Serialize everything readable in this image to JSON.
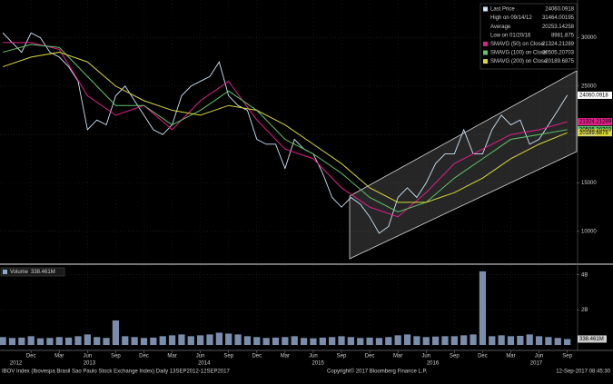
{
  "chart_data": {
    "type": "line",
    "x": [
      0,
      1,
      2,
      3,
      4,
      5,
      6,
      7,
      8,
      9,
      10,
      11,
      12,
      13,
      14,
      15,
      16,
      17,
      18,
      19,
      20,
      21,
      22,
      23,
      24,
      25,
      26,
      27,
      28,
      29,
      30,
      31,
      32,
      33,
      34,
      35,
      36,
      37,
      38,
      39,
      40,
      41,
      42,
      43,
      44,
      45,
      46,
      47,
      48,
      49,
      50,
      51,
      52,
      53,
      54,
      55,
      56,
      57,
      58,
      59,
      60
    ],
    "xlim": [
      -0.3,
      61
    ],
    "xticks": [
      {
        "value": 3,
        "label": "Dec"
      },
      {
        "value": 6,
        "label": "Mar"
      },
      {
        "value": 9,
        "label": "Jun"
      },
      {
        "value": 12,
        "label": "Sep"
      },
      {
        "value": 15,
        "label": "Dec"
      },
      {
        "value": 18,
        "label": "Mar"
      },
      {
        "value": 21,
        "label": "Jun"
      },
      {
        "value": 24,
        "label": "Sep"
      },
      {
        "value": 27,
        "label": "Dec"
      },
      {
        "value": 30,
        "label": "Mar"
      },
      {
        "value": 33,
        "label": "Jun"
      },
      {
        "value": 36,
        "label": "Sep"
      },
      {
        "value": 39,
        "label": "Dec"
      },
      {
        "value": 42,
        "label": "Mar"
      },
      {
        "value": 45,
        "label": "Jun"
      },
      {
        "value": 48,
        "label": "Sep"
      },
      {
        "value": 51,
        "label": "Dec"
      },
      {
        "value": 54,
        "label": "Mar"
      },
      {
        "value": 57,
        "label": "Jun"
      },
      {
        "value": 60,
        "label": "Sep"
      }
    ],
    "year_labels": [
      {
        "value": 1.4,
        "label": "2012"
      },
      {
        "value": 9.2,
        "label": "2013"
      },
      {
        "value": 21.4,
        "label": "2014"
      },
      {
        "value": 33.5,
        "label": "2015"
      },
      {
        "value": 45.7,
        "label": "2016"
      },
      {
        "value": 56.7,
        "label": "2017"
      }
    ],
    "ylim": [
      6700,
      33900
    ],
    "yticks": [
      10000,
      15000,
      20000,
      25000,
      30000
    ],
    "grid": true,
    "series": [
      {
        "name": "Last Price",
        "color": "#cfe3f5",
        "values": [
          30500,
          29500,
          28500,
          30500,
          30000,
          28500,
          28000,
          27000,
          25500,
          20500,
          21500,
          21000,
          24000,
          25000,
          23500,
          22000,
          20500,
          20000,
          21000,
          24000,
          25000,
          25500,
          26000,
          27500,
          24000,
          23000,
          22500,
          19500,
          19000,
          19000,
          16500,
          19500,
          18500,
          18000,
          16000,
          13500,
          12500,
          13500,
          12800,
          11500,
          9800,
          10500,
          13500,
          14500,
          13500,
          15000,
          17000,
          18000,
          18000,
          20500,
          18000,
          18000,
          20500,
          22000,
          21000,
          21500,
          19000,
          19500,
          21000,
          22500,
          24060.0918
        ]
      },
      {
        "name": "SMAVG (50) on Close",
        "color": "#e0218a",
        "x": [
          0,
          3,
          6,
          9,
          12,
          15,
          18,
          21,
          24,
          27,
          30,
          33,
          36,
          39,
          42,
          45,
          48,
          51,
          54,
          57,
          60
        ],
        "values": [
          29500,
          29500,
          28800,
          24000,
          22000,
          23000,
          20500,
          23500,
          25500,
          21500,
          18500,
          17500,
          14500,
          12500,
          11500,
          14000,
          17000,
          18500,
          20000,
          20500,
          21324.21289
        ]
      },
      {
        "name": "SMAVG (100) on Close",
        "color": "#5fc46a",
        "x": [
          0,
          3,
          6,
          9,
          12,
          15,
          18,
          21,
          24,
          27,
          30,
          33,
          36,
          39,
          42,
          45,
          48,
          51,
          54,
          57,
          60
        ],
        "values": [
          28500,
          29300,
          29000,
          26000,
          23000,
          23000,
          21000,
          22500,
          24500,
          22500,
          19500,
          18000,
          16000,
          13500,
          12000,
          13000,
          15500,
          17500,
          19500,
          20000,
          20505.20703
        ]
      },
      {
        "name": "SMAVG (200) on Close",
        "color": "#d8d83a",
        "x": [
          0,
          3,
          6,
          9,
          12,
          15,
          18,
          21,
          24,
          27,
          30,
          33,
          36,
          39,
          42,
          45,
          48,
          51,
          54,
          57,
          60
        ],
        "values": [
          27000,
          28000,
          28500,
          27500,
          25000,
          23500,
          22500,
          22000,
          23000,
          22500,
          21000,
          19000,
          17000,
          14500,
          13000,
          13000,
          14000,
          15500,
          17500,
          19000,
          20189.6875
        ]
      }
    ],
    "legend_stats": [
      {
        "label": "High on 09/14/12",
        "value": 31464.00195
      },
      {
        "label": "Average",
        "value": 20253.14258
      },
      {
        "label": "Low on 01/20/16",
        "value": 8981.875
      }
    ],
    "volume": {
      "name": "Volume",
      "color": "#8fa6c8",
      "last_value_label": "338.461M",
      "values": [
        0.45,
        0.4,
        0.42,
        0.5,
        0.38,
        0.4,
        0.45,
        0.42,
        0.5,
        0.6,
        0.45,
        0.4,
        1.4,
        0.5,
        0.45,
        0.4,
        0.42,
        0.5,
        0.55,
        0.6,
        0.5,
        0.55,
        0.6,
        0.7,
        0.65,
        0.6,
        0.5,
        0.45,
        0.4,
        0.42,
        0.45,
        0.5,
        0.4,
        0.38,
        0.42,
        0.45,
        0.5,
        0.45,
        0.4,
        0.42,
        0.4,
        0.45,
        0.55,
        0.6,
        0.5,
        0.45,
        0.48,
        0.5,
        0.5,
        0.55,
        0.6,
        4.2,
        0.5,
        0.55,
        0.5,
        0.52,
        0.6,
        0.5,
        0.45,
        0.4,
        0.338461
      ],
      "ylim": [
        0,
        4.4
      ],
      "yticks": [
        {
          "value": 2,
          "label": "2B"
        },
        {
          "value": 4,
          "label": "4B"
        }
      ]
    },
    "footer": {
      "left": "IBOV Index (Ibovespa Brasil Sao Paulo Stock Exchange Index)  Daily 13SEP2012-12SEP2017",
      "center": "Copyright© 2017 Bloomberg Finance L.P.",
      "right": "12-Sep-2017 08:45:30"
    }
  }
}
